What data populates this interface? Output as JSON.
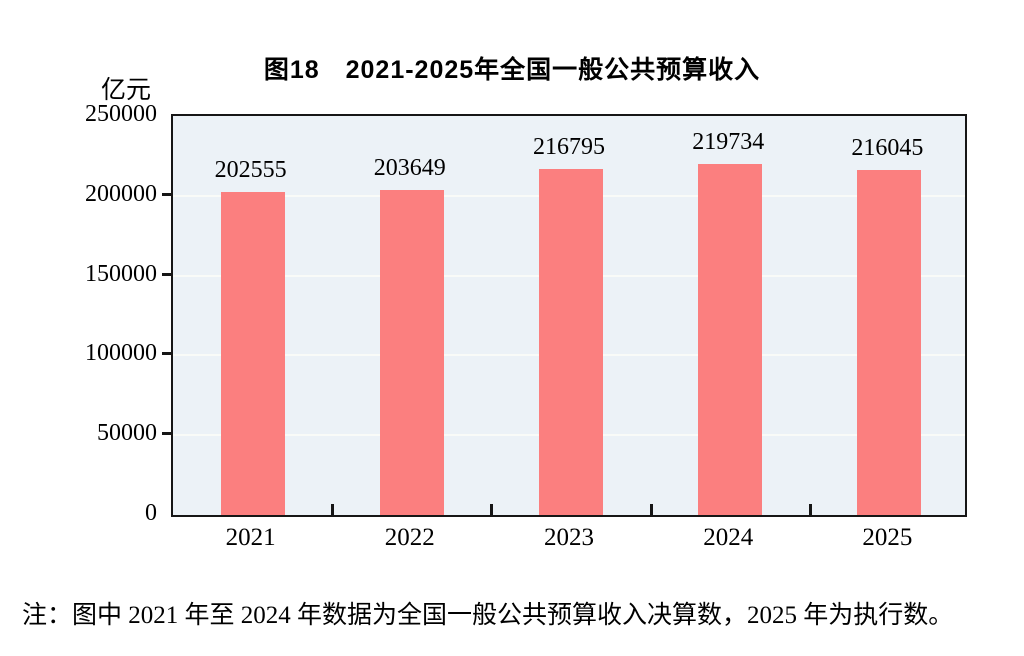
{
  "header": {
    "title": "图18　2021-2025年全国一般公共预算收入"
  },
  "chart_data": {
    "type": "bar",
    "title": "图18　2021-2025年全国一般公共预算收入",
    "unit_label": "亿元",
    "categories": [
      "2021",
      "2022",
      "2023",
      "2024",
      "2025"
    ],
    "values": [
      202555,
      203649,
      216795,
      219734,
      216045
    ],
    "data_labels": [
      "202555",
      "203649",
      "216795",
      "219734",
      "216045"
    ],
    "xlabel": "",
    "ylabel": "亿元",
    "ylim": [
      0,
      250000
    ],
    "yticks": [
      0,
      50000,
      100000,
      150000,
      200000,
      250000
    ],
    "grid": true,
    "legend": "none",
    "bar_color": "#fb7f7f",
    "plot_background": "#ecf2f7",
    "gridline_color": "#f9fbf8",
    "axis_color": "#161616"
  },
  "note": {
    "text": "注：图中 2021 年至 2024 年数据为全国一般公共预算收入决算数，2025 年为执行数。"
  }
}
